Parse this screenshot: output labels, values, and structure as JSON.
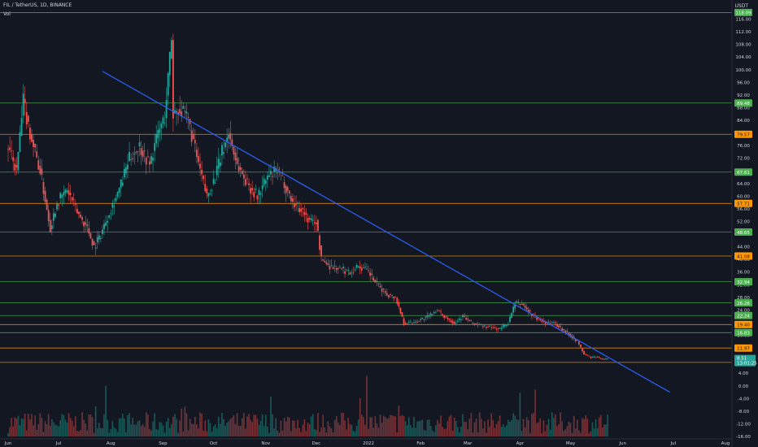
{
  "header": {
    "symbol_line": "FIL / TetherUS, 1D, BINANCE",
    "volume_label": "Vol",
    "currency": "USDT"
  },
  "colors": {
    "background": "#131722",
    "up": "#26a69a",
    "down": "#ef5350",
    "trendline": "#2962ff",
    "support_green": "#4caf50",
    "level_orange": "#ff9800",
    "axis_text": "#d1d4dc"
  },
  "chart_data": {
    "type": "candlestick",
    "title": "",
    "xlabel": "",
    "ylabel": "",
    "ylim": [
      -16,
      120
    ],
    "x_ticks": [
      "Jun",
      "Jul",
      "Aug",
      "Sep",
      "Oct",
      "Nov",
      "Dec",
      "2022",
      "Feb",
      "Mar",
      "Apr",
      "May",
      "Jun",
      "Jul",
      "Aug"
    ],
    "y_ticks": [
      116.0,
      112.0,
      108.0,
      104.0,
      100.0,
      96.0,
      92.0,
      88.0,
      84.0,
      80.0,
      76.0,
      72.0,
      68.0,
      64.0,
      60.0,
      56.0,
      52.0,
      48.0,
      44.0,
      40.0,
      36.0,
      32.0,
      28.0,
      24.0,
      20.0,
      16.0,
      12.0,
      8.0,
      4.0,
      0.0,
      -4.0,
      -8.0,
      -12.0,
      -16.0
    ],
    "horizontal_levels": [
      {
        "value": 118.09,
        "label": "118.09",
        "color": "green"
      },
      {
        "value": 89.48,
        "label": "89.48",
        "color": "green"
      },
      {
        "value": 79.57,
        "label": "79.57",
        "color": "orange"
      },
      {
        "value": 67.61,
        "label": "67.61",
        "color": "green"
      },
      {
        "value": 57.71,
        "label": "57.71",
        "color": "orange"
      },
      {
        "value": 48.65,
        "label": "48.65",
        "color": "green"
      },
      {
        "value": 41.08,
        "label": "41.08",
        "color": "orange"
      },
      {
        "value": 32.94,
        "label": "32.94",
        "color": "green"
      },
      {
        "value": 26.26,
        "label": "26.26",
        "color": "green"
      },
      {
        "value": 22.24,
        "label": "22.24",
        "color": "green"
      },
      {
        "value": 19.4,
        "label": "19.40",
        "color": "orange"
      },
      {
        "value": 16.83,
        "label": "16.83",
        "color": "green"
      },
      {
        "value": 11.97,
        "label": "11.97",
        "color": "orange"
      },
      {
        "value": 7.43,
        "label": "7.43",
        "color": "orange"
      }
    ],
    "current_price": {
      "value": 8.51,
      "label": "8.51",
      "countdown": "13:01:25"
    },
    "trendline": {
      "from": {
        "date": "2021-07-27",
        "value": 99.5
      },
      "to": {
        "date": "2022-06-29",
        "value": -2.0
      }
    },
    "price_series": [
      [
        "2021-06-01",
        75
      ],
      [
        "2021-06-06",
        68
      ],
      [
        "2021-06-10",
        90
      ],
      [
        "2021-06-14",
        80
      ],
      [
        "2021-06-20",
        68
      ],
      [
        "2021-06-26",
        50
      ],
      [
        "2021-06-30",
        58
      ],
      [
        "2021-07-06",
        62
      ],
      [
        "2021-07-12",
        55
      ],
      [
        "2021-07-18",
        50
      ],
      [
        "2021-07-22",
        44
      ],
      [
        "2021-07-26",
        48
      ],
      [
        "2021-07-31",
        55
      ],
      [
        "2021-08-06",
        62
      ],
      [
        "2021-08-12",
        72
      ],
      [
        "2021-08-18",
        76
      ],
      [
        "2021-08-24",
        70
      ],
      [
        "2021-08-29",
        80
      ],
      [
        "2021-09-02",
        85
      ],
      [
        "2021-09-06",
        110
      ],
      [
        "2021-09-07",
        86
      ],
      [
        "2021-09-10",
        88
      ],
      [
        "2021-09-16",
        84
      ],
      [
        "2021-09-22",
        70
      ],
      [
        "2021-09-27",
        60
      ],
      [
        "2021-10-02",
        66
      ],
      [
        "2021-10-06",
        74
      ],
      [
        "2021-10-10",
        80
      ],
      [
        "2021-10-15",
        70
      ],
      [
        "2021-10-21",
        64
      ],
      [
        "2021-10-27",
        60
      ],
      [
        "2021-11-02",
        66
      ],
      [
        "2021-11-08",
        68
      ],
      [
        "2021-11-12",
        64
      ],
      [
        "2021-11-17",
        58
      ],
      [
        "2021-11-22",
        56
      ],
      [
        "2021-11-27",
        52
      ],
      [
        "2021-12-01",
        52
      ],
      [
        "2021-12-04",
        40
      ],
      [
        "2021-12-09",
        38
      ],
      [
        "2021-12-15",
        37
      ],
      [
        "2021-12-21",
        36
      ],
      [
        "2021-12-26",
        38
      ],
      [
        "2022-01-01",
        36
      ],
      [
        "2022-01-06",
        32
      ],
      [
        "2022-01-12",
        29
      ],
      [
        "2022-01-17",
        28
      ],
      [
        "2022-01-22",
        20
      ],
      [
        "2022-01-27",
        20
      ],
      [
        "2022-02-01",
        21
      ],
      [
        "2022-02-06",
        22
      ],
      [
        "2022-02-10",
        24
      ],
      [
        "2022-02-15",
        22
      ],
      [
        "2022-02-21",
        20
      ],
      [
        "2022-02-26",
        22
      ],
      [
        "2022-03-03",
        20
      ],
      [
        "2022-03-09",
        19
      ],
      [
        "2022-03-14",
        18.5
      ],
      [
        "2022-03-20",
        18
      ],
      [
        "2022-03-25",
        20
      ],
      [
        "2022-03-29",
        26
      ],
      [
        "2022-04-02",
        26
      ],
      [
        "2022-04-07",
        23
      ],
      [
        "2022-04-12",
        21
      ],
      [
        "2022-04-17",
        20
      ],
      [
        "2022-04-21",
        20
      ],
      [
        "2022-04-26",
        18
      ],
      [
        "2022-05-01",
        16
      ],
      [
        "2022-05-05",
        14
      ],
      [
        "2022-05-09",
        10
      ],
      [
        "2022-05-13",
        9
      ],
      [
        "2022-05-17",
        9
      ],
      [
        "2022-05-21",
        8.5
      ],
      [
        "2022-05-23",
        8.51
      ]
    ]
  }
}
